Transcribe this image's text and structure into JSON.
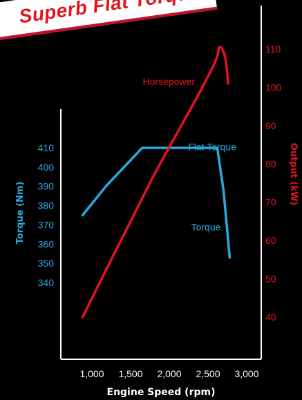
{
  "banner": {
    "title": "Superb Flat Torque"
  },
  "colors": {
    "background": "#000000",
    "torque": "#2aa9e0",
    "horsepower": "#e3141f",
    "axis": "#ffffff",
    "banner_bg": "#ffffff",
    "banner_text": "#e3141f"
  },
  "chart_data": {
    "type": "line",
    "title": "Superb Flat Torque",
    "xlabel": "Engine Speed (rpm)",
    "x_ticks": [
      "1,000",
      "1,500",
      "2,000",
      "2,500",
      "3,000"
    ],
    "xlim": [
      750,
      3100
    ],
    "y_left": {
      "label": "Torque (Nm)",
      "ticks": [
        "410",
        "400",
        "390",
        "380",
        "370",
        "360",
        "350",
        "340"
      ],
      "ylim": [
        340,
        410
      ]
    },
    "y_right": {
      "label": "Output (kW)",
      "ticks": [
        "110",
        "100",
        "90",
        "80",
        "70",
        "60",
        "50",
        "40"
      ],
      "ylim": [
        40,
        110
      ]
    },
    "series": [
      {
        "name": "Torque",
        "axis": "left",
        "points": [
          [
            880,
            375
          ],
          [
            1180,
            390
          ],
          [
            1650,
            410
          ],
          [
            2620,
            410
          ],
          [
            2700,
            388
          ],
          [
            2780,
            353
          ]
        ]
      },
      {
        "name": "Horsepower",
        "axis": "right",
        "points": [
          [
            880,
            40
          ],
          [
            1200,
            53
          ],
          [
            1500,
            65
          ],
          [
            1800,
            77
          ],
          [
            2100,
            88
          ],
          [
            2400,
            99
          ],
          [
            2600,
            107
          ],
          [
            2650,
            110.5
          ],
          [
            2720,
            108
          ],
          [
            2760,
            101
          ]
        ]
      }
    ],
    "annotations": [
      {
        "text": "Flat Torque",
        "x": 2900,
        "y_right": 84.5,
        "color": "#2aa9e0"
      },
      {
        "text": "Horsepower",
        "x": 1950,
        "y_right": 101.5,
        "color": "#e3141f"
      },
      {
        "text": "Torque",
        "x": 2650,
        "y_right": 63.5,
        "color": "#2aa9e0"
      }
    ],
    "grid": false
  }
}
